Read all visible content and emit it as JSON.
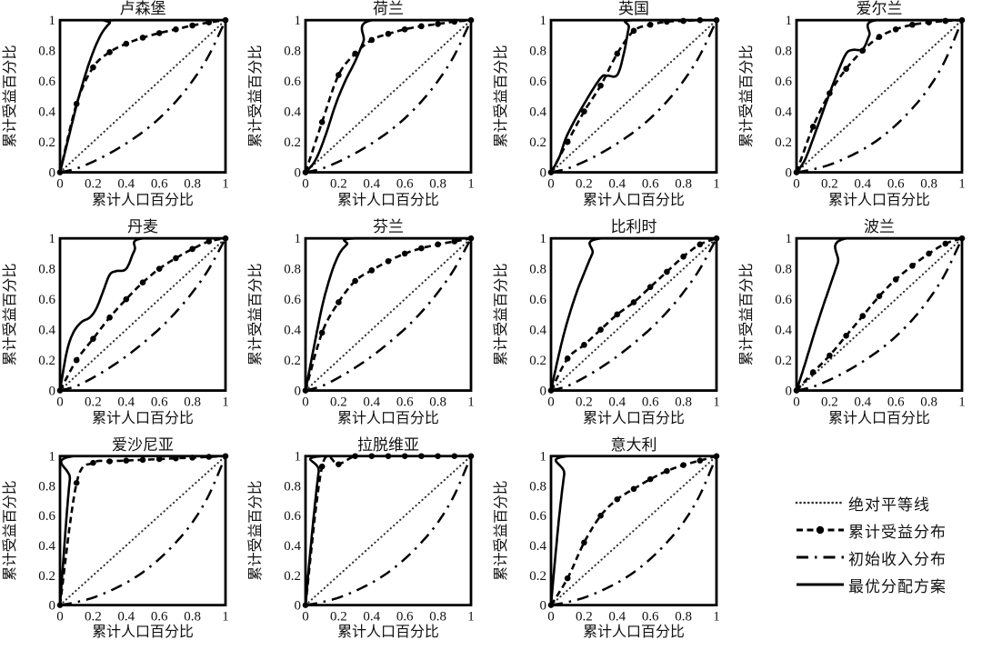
{
  "figure": {
    "background": "#ffffff",
    "curve_color": "#000000",
    "equality_color": "#333333",
    "text_color": "#111111"
  },
  "axis": {
    "xlabel": "累计人口百分比",
    "ylabel": "累计受益百分比",
    "tick_labels": [
      "0",
      "0.2",
      "0.4",
      "0.6",
      "0.8",
      "1"
    ],
    "tick_values": [
      0,
      0.2,
      0.4,
      0.6,
      0.8,
      1
    ],
    "xlim": [
      0,
      1
    ],
    "ylim": [
      0,
      1
    ]
  },
  "legend": {
    "items": [
      {
        "label": "绝对平等线",
        "style": "dotted"
      },
      {
        "label": "累计受益分布",
        "style": "dashed-marker"
      },
      {
        "label": "初始收入分布",
        "style": "dashdot"
      },
      {
        "label": "最优分配方案",
        "style": "solid"
      }
    ]
  },
  "chart_data": [
    {
      "type": "line",
      "title": "卢森堡",
      "xlabel": "累计人口百分比",
      "ylabel": "累计受益百分比",
      "xlim": [
        0,
        1
      ],
      "ylim": [
        0,
        1
      ],
      "benefit_x": [
        0,
        0.1,
        0.2,
        0.3,
        0.4,
        0.5,
        0.6,
        0.7,
        0.8,
        0.9,
        1
      ],
      "benefit_y": [
        0,
        0.45,
        0.69,
        0.79,
        0.845,
        0.885,
        0.915,
        0.94,
        0.965,
        0.985,
        1
      ],
      "income_y": [
        0,
        0.025,
        0.07,
        0.125,
        0.19,
        0.265,
        0.355,
        0.465,
        0.6,
        0.77,
        1
      ],
      "equality": [
        [
          0,
          0
        ],
        [
          1,
          1
        ]
      ],
      "optimal": [
        [
          0,
          0
        ],
        [
          0.05,
          0.22
        ],
        [
          0.1,
          0.44
        ],
        [
          0.15,
          0.63
        ],
        [
          0.2,
          0.79
        ],
        [
          0.25,
          0.91
        ],
        [
          0.3,
          0.98
        ],
        [
          0.33,
          1
        ],
        [
          1,
          1
        ]
      ]
    },
    {
      "type": "line",
      "title": "荷兰",
      "xlabel": "累计人口百分比",
      "ylabel": "累计受益百分比",
      "xlim": [
        0,
        1
      ],
      "ylim": [
        0,
        1
      ],
      "benefit_x": [
        0,
        0.1,
        0.2,
        0.3,
        0.4,
        0.5,
        0.6,
        0.7,
        0.8,
        0.9,
        1
      ],
      "benefit_y": [
        0,
        0.33,
        0.64,
        0.78,
        0.87,
        0.91,
        0.94,
        0.96,
        0.975,
        0.99,
        1
      ],
      "income_y": [
        0,
        0.025,
        0.07,
        0.125,
        0.19,
        0.265,
        0.355,
        0.465,
        0.6,
        0.77,
        1
      ],
      "equality": [
        [
          0,
          0
        ],
        [
          1,
          1
        ]
      ],
      "optimal": [
        [
          0,
          0
        ],
        [
          0.06,
          0.08
        ],
        [
          0.12,
          0.24
        ],
        [
          0.18,
          0.44
        ],
        [
          0.24,
          0.6
        ],
        [
          0.3,
          0.73
        ],
        [
          0.35,
          0.86
        ],
        [
          0.4,
          1
        ],
        [
          1,
          1
        ]
      ]
    },
    {
      "type": "line",
      "title": "英国",
      "xlabel": "累计人口百分比",
      "ylabel": "累计受益百分比",
      "xlim": [
        0,
        1
      ],
      "ylim": [
        0,
        1
      ],
      "benefit_x": [
        0,
        0.1,
        0.2,
        0.3,
        0.4,
        0.5,
        0.6,
        0.7,
        0.8,
        0.9,
        1
      ],
      "benefit_y": [
        0,
        0.2,
        0.4,
        0.57,
        0.78,
        0.93,
        0.97,
        0.99,
        0.995,
        1,
        1
      ],
      "income_y": [
        0,
        0.025,
        0.07,
        0.125,
        0.19,
        0.265,
        0.355,
        0.465,
        0.6,
        0.77,
        1
      ],
      "equality": [
        [
          0,
          0
        ],
        [
          1,
          1
        ]
      ],
      "optimal": [
        [
          0,
          0
        ],
        [
          0.05,
          0.1
        ],
        [
          0.1,
          0.25
        ],
        [
          0.2,
          0.45
        ],
        [
          0.3,
          0.62
        ],
        [
          0.34,
          0.635
        ],
        [
          0.4,
          0.64
        ],
        [
          0.44,
          0.78
        ],
        [
          0.47,
          0.95
        ],
        [
          0.49,
          1
        ],
        [
          1,
          1
        ]
      ]
    },
    {
      "type": "line",
      "title": "爱尔兰",
      "xlabel": "累计人口百分比",
      "ylabel": "累计受益百分比",
      "xlim": [
        0,
        1
      ],
      "ylim": [
        0,
        1
      ],
      "benefit_x": [
        0,
        0.1,
        0.2,
        0.3,
        0.4,
        0.5,
        0.6,
        0.7,
        0.8,
        0.9,
        1
      ],
      "benefit_y": [
        0,
        0.3,
        0.52,
        0.68,
        0.8,
        0.89,
        0.94,
        0.97,
        0.985,
        0.995,
        1
      ],
      "income_y": [
        0,
        0.02,
        0.05,
        0.095,
        0.15,
        0.22,
        0.31,
        0.42,
        0.555,
        0.74,
        1
      ],
      "equality": [
        [
          0,
          0
        ],
        [
          1,
          1
        ]
      ],
      "optimal": [
        [
          0,
          0
        ],
        [
          0.05,
          0.08
        ],
        [
          0.1,
          0.22
        ],
        [
          0.15,
          0.37
        ],
        [
          0.2,
          0.52
        ],
        [
          0.25,
          0.66
        ],
        [
          0.3,
          0.78
        ],
        [
          0.34,
          0.805
        ],
        [
          0.4,
          0.81
        ],
        [
          0.44,
          0.9
        ],
        [
          0.48,
          1
        ],
        [
          1,
          1
        ]
      ]
    },
    {
      "type": "line",
      "title": "丹麦",
      "xlabel": "累计人口百分比",
      "ylabel": "累计受益百分比",
      "xlim": [
        0,
        1
      ],
      "ylim": [
        0,
        1
      ],
      "benefit_x": [
        0,
        0.1,
        0.2,
        0.3,
        0.4,
        0.5,
        0.6,
        0.7,
        0.8,
        0.9,
        1
      ],
      "benefit_y": [
        0,
        0.2,
        0.34,
        0.48,
        0.6,
        0.71,
        0.8,
        0.87,
        0.93,
        0.98,
        1
      ],
      "income_y": [
        0,
        0.03,
        0.085,
        0.15,
        0.225,
        0.31,
        0.405,
        0.515,
        0.645,
        0.8,
        1
      ],
      "equality": [
        [
          0,
          0
        ],
        [
          1,
          1
        ]
      ],
      "optimal": [
        [
          0,
          0
        ],
        [
          0.04,
          0.25
        ],
        [
          0.08,
          0.38
        ],
        [
          0.13,
          0.45
        ],
        [
          0.18,
          0.48
        ],
        [
          0.22,
          0.54
        ],
        [
          0.26,
          0.65
        ],
        [
          0.3,
          0.76
        ],
        [
          0.34,
          0.785
        ],
        [
          0.4,
          0.8
        ],
        [
          0.45,
          0.92
        ],
        [
          0.5,
          1
        ],
        [
          1,
          1
        ]
      ]
    },
    {
      "type": "line",
      "title": "芬兰",
      "xlabel": "累计人口百分比",
      "ylabel": "累计受益百分比",
      "xlim": [
        0,
        1
      ],
      "ylim": [
        0,
        1
      ],
      "benefit_x": [
        0,
        0.1,
        0.2,
        0.3,
        0.4,
        0.5,
        0.6,
        0.7,
        0.8,
        0.9,
        1
      ],
      "benefit_y": [
        0,
        0.38,
        0.58,
        0.72,
        0.79,
        0.85,
        0.9,
        0.935,
        0.96,
        0.98,
        1
      ],
      "income_y": [
        0,
        0.03,
        0.085,
        0.15,
        0.225,
        0.31,
        0.405,
        0.515,
        0.645,
        0.8,
        1
      ],
      "equality": [
        [
          0,
          0
        ],
        [
          1,
          1
        ]
      ],
      "optimal": [
        [
          0,
          0
        ],
        [
          0.05,
          0.28
        ],
        [
          0.1,
          0.55
        ],
        [
          0.15,
          0.75
        ],
        [
          0.2,
          0.89
        ],
        [
          0.25,
          0.96
        ],
        [
          0.3,
          1
        ],
        [
          1,
          1
        ]
      ]
    },
    {
      "type": "line",
      "title": "比利时",
      "xlabel": "累计人口百分比",
      "ylabel": "累计受益百分比",
      "xlim": [
        0,
        1
      ],
      "ylim": [
        0,
        1
      ],
      "benefit_x": [
        0,
        0.1,
        0.2,
        0.3,
        0.4,
        0.5,
        0.6,
        0.7,
        0.8,
        0.9,
        1
      ],
      "benefit_y": [
        0,
        0.21,
        0.3,
        0.4,
        0.5,
        0.58,
        0.68,
        0.78,
        0.88,
        0.96,
        1
      ],
      "income_y": [
        0,
        0.03,
        0.085,
        0.15,
        0.225,
        0.31,
        0.405,
        0.515,
        0.645,
        0.8,
        1
      ],
      "equality": [
        [
          0,
          0
        ],
        [
          1,
          1
        ]
      ],
      "optimal": [
        [
          0,
          0
        ],
        [
          0.04,
          0.2
        ],
        [
          0.08,
          0.38
        ],
        [
          0.12,
          0.53
        ],
        [
          0.16,
          0.66
        ],
        [
          0.2,
          0.77
        ],
        [
          0.25,
          0.9
        ],
        [
          0.3,
          1
        ],
        [
          1,
          1
        ]
      ]
    },
    {
      "type": "line",
      "title": "波兰",
      "xlabel": "累计人口百分比",
      "ylabel": "累计受益百分比",
      "xlim": [
        0,
        1
      ],
      "ylim": [
        0,
        1
      ],
      "benefit_x": [
        0,
        0.1,
        0.2,
        0.3,
        0.4,
        0.5,
        0.6,
        0.7,
        0.8,
        0.9,
        1
      ],
      "benefit_y": [
        0,
        0.12,
        0.23,
        0.36,
        0.49,
        0.62,
        0.73,
        0.82,
        0.9,
        0.965,
        1
      ],
      "income_y": [
        0,
        0.025,
        0.07,
        0.125,
        0.19,
        0.265,
        0.355,
        0.465,
        0.6,
        0.77,
        1
      ],
      "equality": [
        [
          0,
          0
        ],
        [
          1,
          1
        ]
      ],
      "optimal": [
        [
          0,
          0
        ],
        [
          0.05,
          0.17
        ],
        [
          0.1,
          0.35
        ],
        [
          0.15,
          0.52
        ],
        [
          0.2,
          0.68
        ],
        [
          0.25,
          0.84
        ],
        [
          0.3,
          1
        ],
        [
          1,
          1
        ]
      ]
    },
    {
      "type": "line",
      "title": "爱沙尼亚",
      "xlabel": "累计人口百分比",
      "ylabel": "累计受益百分比",
      "xlim": [
        0,
        1
      ],
      "ylim": [
        0,
        1
      ],
      "benefit_x": [
        0,
        0.1,
        0.2,
        0.3,
        0.4,
        0.5,
        0.6,
        0.7,
        0.8,
        0.9,
        1
      ],
      "benefit_y": [
        0,
        0.82,
        0.955,
        0.965,
        0.97,
        0.975,
        0.98,
        0.985,
        0.99,
        0.995,
        1
      ],
      "income_y": [
        0,
        0.02,
        0.05,
        0.095,
        0.15,
        0.22,
        0.31,
        0.42,
        0.555,
        0.74,
        1
      ],
      "equality": [
        [
          0,
          0
        ],
        [
          1,
          1
        ]
      ],
      "optimal": [
        [
          0,
          0
        ],
        [
          0.02,
          0.3
        ],
        [
          0.04,
          0.6
        ],
        [
          0.06,
          0.85
        ],
        [
          0.08,
          1
        ],
        [
          1,
          1
        ]
      ]
    },
    {
      "type": "line",
      "title": "拉脱维亚",
      "xlabel": "累计人口百分比",
      "ylabel": "累计受益百分比",
      "xlim": [
        0,
        1
      ],
      "ylim": [
        0,
        1
      ],
      "benefit_x": [
        0,
        0.1,
        0.2,
        0.3,
        0.4,
        0.5,
        0.6,
        0.7,
        0.8,
        0.9,
        1
      ],
      "benefit_y": [
        0,
        0.93,
        0.945,
        1,
        1,
        1,
        1,
        1,
        1,
        1,
        1
      ],
      "income_y": [
        0,
        0.02,
        0.05,
        0.095,
        0.15,
        0.22,
        0.31,
        0.42,
        0.555,
        0.74,
        1
      ],
      "equality": [
        [
          0,
          0
        ],
        [
          1,
          1
        ]
      ],
      "optimal": [
        [
          0,
          0
        ],
        [
          0.02,
          0.25
        ],
        [
          0.05,
          0.6
        ],
        [
          0.08,
          0.9
        ],
        [
          0.1,
          1
        ],
        [
          1,
          1
        ]
      ]
    },
    {
      "type": "line",
      "title": "意大利",
      "xlabel": "累计人口百分比",
      "ylabel": "累计受益百分比",
      "xlim": [
        0,
        1
      ],
      "ylim": [
        0,
        1
      ],
      "benefit_x": [
        0,
        0.1,
        0.2,
        0.3,
        0.4,
        0.5,
        0.6,
        0.7,
        0.8,
        0.9,
        1
      ],
      "benefit_y": [
        0,
        0.18,
        0.42,
        0.6,
        0.71,
        0.78,
        0.845,
        0.9,
        0.94,
        0.97,
        1
      ],
      "income_y": [
        0,
        0.02,
        0.05,
        0.095,
        0.15,
        0.22,
        0.31,
        0.42,
        0.555,
        0.74,
        1
      ],
      "equality": [
        [
          0,
          0
        ],
        [
          1,
          1
        ]
      ],
      "optimal": [
        [
          0,
          0
        ],
        [
          0.02,
          0.25
        ],
        [
          0.05,
          0.6
        ],
        [
          0.08,
          0.88
        ],
        [
          0.1,
          1
        ],
        [
          1,
          1
        ]
      ]
    }
  ]
}
